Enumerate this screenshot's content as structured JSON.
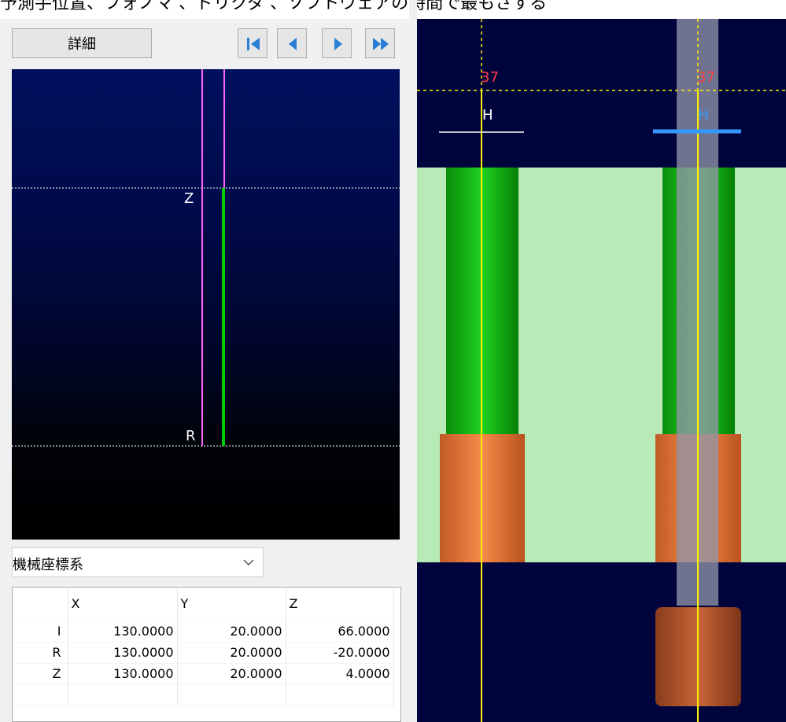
{
  "caption": {
    "text": "予測手位置、フォノマ 、ドリクダ 、ソフトウェアの時間で最もさする"
  },
  "toolbar": {
    "detail_label": "詳細",
    "nav_buttons": [
      "first-icon",
      "prev-icon",
      "next-icon",
      "last-icon"
    ]
  },
  "sim_view": {
    "z_label": "Z",
    "r_label": "R",
    "colors": {
      "guide": "#ff66ff",
      "tool_path": "#00cc00",
      "dotted": "#ffffff"
    }
  },
  "coordinate_system": {
    "selected": "機械座標系"
  },
  "coord_table": {
    "headers": [
      "",
      "X",
      "Y",
      "Z"
    ],
    "rows": [
      {
        "label": "I",
        "x": "130.0000",
        "y": "20.0000",
        "z": "66.0000"
      },
      {
        "label": "R",
        "x": "130.0000",
        "y": "20.0000",
        "z": "-20.0000"
      },
      {
        "label": "Z",
        "x": "130.0000",
        "y": "20.0000",
        "z": "4.0000"
      }
    ]
  },
  "side_view": {
    "height_label_left": "37",
    "height_label_right": "37",
    "h_label_left": "H",
    "h_label_right": "H",
    "colors": {
      "background": "#00043d",
      "workpiece": "#b8eab8",
      "shaft": "#10b010",
      "collar": "#e8783c",
      "cursor": "#ffee00",
      "label_red": "#ff4040",
      "label_blue": "#3399ff",
      "tool": "#8f93a6"
    }
  }
}
